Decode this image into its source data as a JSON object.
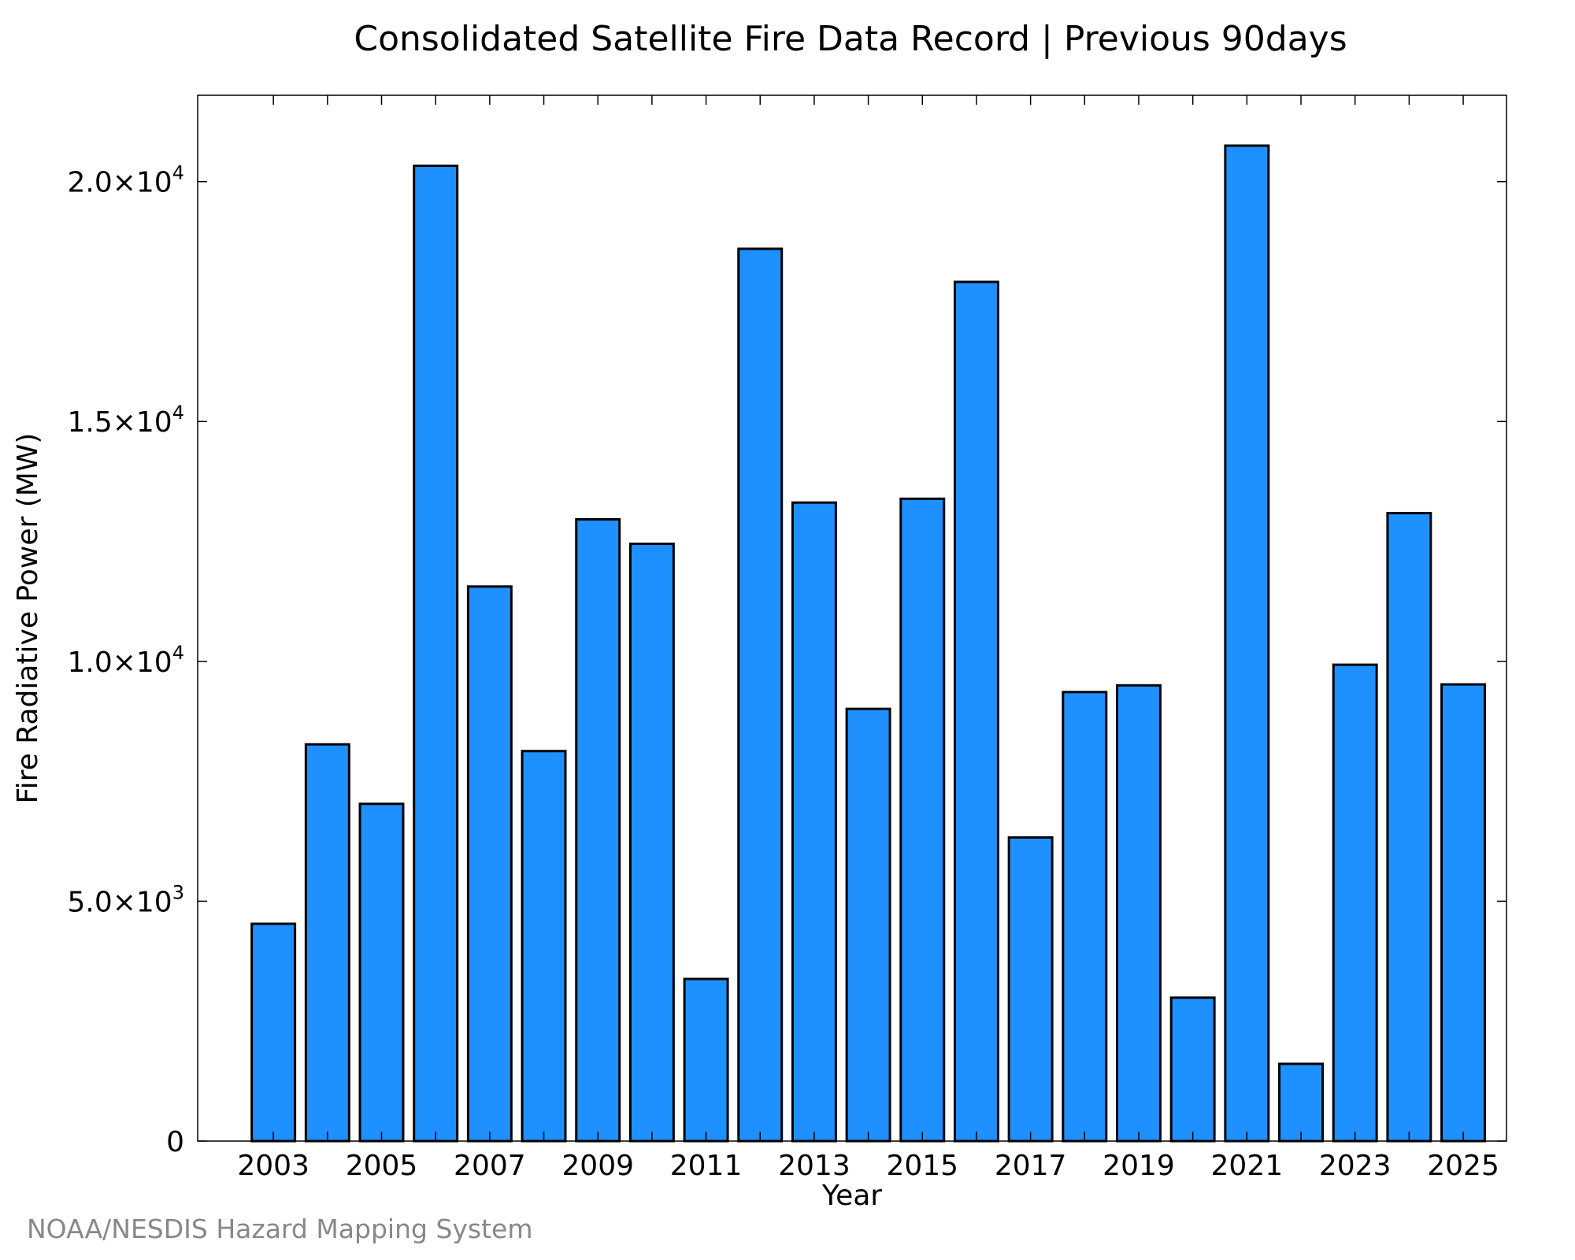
{
  "chart_data": {
    "type": "bar",
    "title": "Consolidated Satellite Fire Data Record | Previous 90days",
    "xlabel": "Year",
    "ylabel": "Fire Radiative Power (MW)",
    "categories": [
      2003,
      2004,
      2005,
      2006,
      2007,
      2008,
      2009,
      2010,
      2011,
      2012,
      2013,
      2014,
      2015,
      2016,
      2017,
      2018,
      2019,
      2020,
      2021,
      2022,
      2023,
      2024,
      2025
    ],
    "values": [
      4530,
      8270,
      7030,
      20330,
      11560,
      8130,
      12960,
      12450,
      3380,
      18600,
      13310,
      9010,
      13390,
      17910,
      6330,
      9360,
      9500,
      2990,
      20750,
      1610,
      9930,
      13090,
      9520
    ],
    "xticks": [
      {
        "value": 2003,
        "label": "2003"
      },
      {
        "value": 2005,
        "label": "2005"
      },
      {
        "value": 2007,
        "label": "2007"
      },
      {
        "value": 2009,
        "label": "2009"
      },
      {
        "value": 2011,
        "label": "2011"
      },
      {
        "value": 2013,
        "label": "2013"
      },
      {
        "value": 2015,
        "label": "2015"
      },
      {
        "value": 2017,
        "label": "2017"
      },
      {
        "value": 2019,
        "label": "2019"
      },
      {
        "value": 2021,
        "label": "2021"
      },
      {
        "value": 2023,
        "label": "2023"
      },
      {
        "value": 2025,
        "label": "2025"
      }
    ],
    "yticks": [
      {
        "value": 0,
        "mantissa": "0",
        "exponent": ""
      },
      {
        "value": 5000,
        "mantissa": "5.0×10",
        "exponent": "3"
      },
      {
        "value": 10000,
        "mantissa": "1.0×10",
        "exponent": "4"
      },
      {
        "value": 15000,
        "mantissa": "1.5×10",
        "exponent": "4"
      },
      {
        "value": 20000,
        "mantissa": "2.0×10",
        "exponent": "4"
      }
    ],
    "xlim": [
      2001.6,
      2025.8
    ],
    "ylim": [
      0,
      21800
    ],
    "bar_color": "#1e90ff",
    "bar_edge_color": "#000000",
    "grid": false,
    "legend": "none"
  },
  "credit": "NOAA/NESDIS Hazard Mapping System"
}
